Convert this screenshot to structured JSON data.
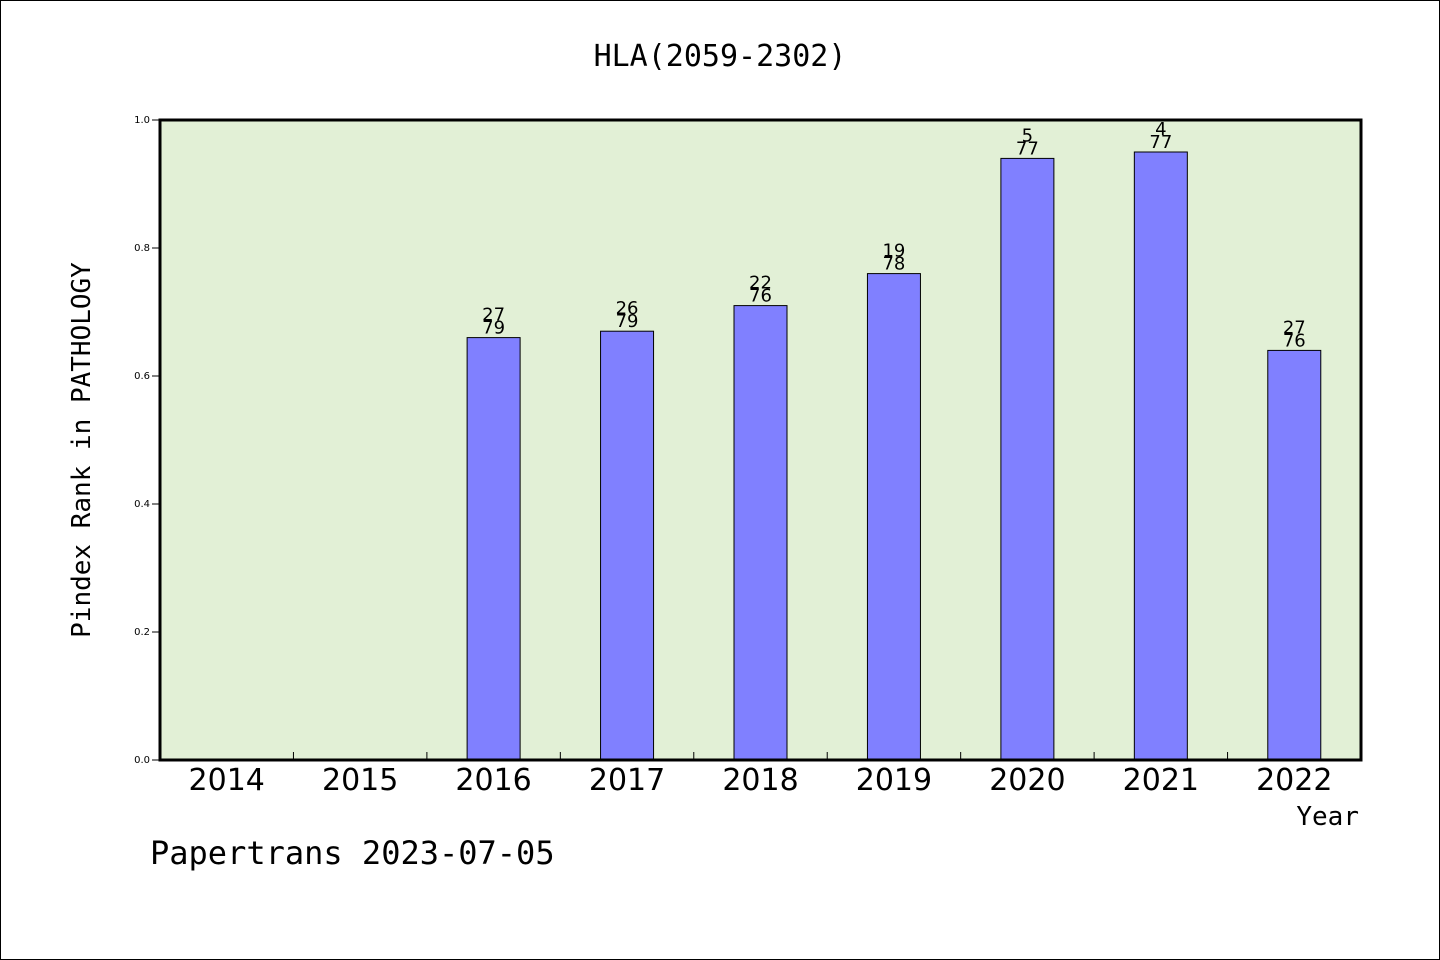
{
  "chart_data": {
    "type": "bar",
    "title": "HLA(2059-2302)",
    "xlabel": "Year",
    "ylabel": "Pindex Rank in PATHOLOGY",
    "ylim": [
      0,
      1.0
    ],
    "yticks": [
      "0.0",
      "0.2",
      "0.4",
      "0.6",
      "0.8",
      "1.0"
    ],
    "categories": [
      "2014",
      "2015",
      "2016",
      "2017",
      "2018",
      "2019",
      "2020",
      "2021",
      "2022"
    ],
    "values": [
      null,
      null,
      0.66,
      0.67,
      0.71,
      0.76,
      0.94,
      0.95,
      0.64
    ],
    "labels_top": [
      "",
      "",
      "27",
      "26",
      "22",
      "19",
      "5",
      "4",
      "27"
    ],
    "labels_bottom": [
      "",
      "",
      "79",
      "79",
      "76",
      "78",
      "77",
      "77",
      "76"
    ],
    "plot_background": "#e2f0d6",
    "bar_color": "#8080ff",
    "grid": false,
    "legend": "none"
  },
  "footer": "Papertrans 2023-07-05"
}
